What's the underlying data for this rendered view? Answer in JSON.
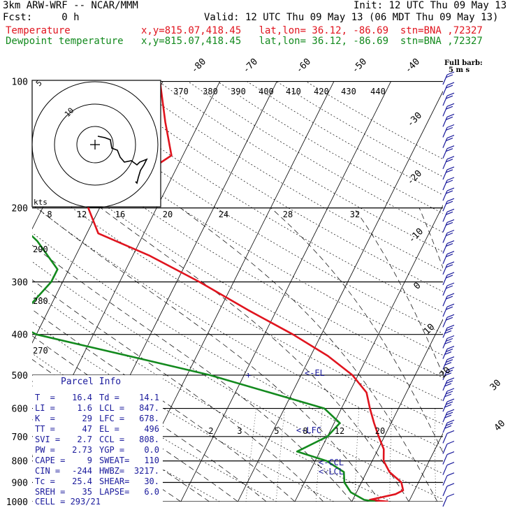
{
  "header": {
    "model": "3km ARW-WRF -- NCAR/MMM",
    "init": "Init: 12 UTC Thu 09 May 13",
    "fcst": "Fcst:     0 h",
    "valid": "Valid: 12 UTC Thu 09 May 13 (06 MDT Thu 09 May 13)",
    "temp_label": "Temperature",
    "temp_info": "x,y=815.07,418.45   lat,lon= 36.12, -86.69  stn=BNA ,72327",
    "dew_label": "Dewpoint temperature",
    "dew_info": "x,y=815.07,418.45   lat,lon= 36.12, -86.69  stn=BNA ,72327"
  },
  "colors": {
    "temperature": "#e0141e",
    "dewpoint": "#138a1e",
    "text_blue": "#1a1a9c",
    "grid": "#000000"
  },
  "wind_barb_label": "Full barb:",
  "wind_barb_units": "5 m s",
  "hodograph": {
    "units": "kts",
    "rings": [
      "5",
      "10"
    ]
  },
  "parcel_info": {
    "title": "Parcel Info",
    "rows": [
      [
        "T  =",
        "16.4",
        "Td =",
        "14.1"
      ],
      [
        "LI =",
        "1.6",
        "LCL =",
        "847."
      ],
      [
        "K  =",
        "29",
        "LFC =",
        "678."
      ],
      [
        "TT =",
        "47",
        "EL =",
        "496"
      ],
      [
        "SVI =",
        "2.7",
        "CCL =",
        "808."
      ],
      [
        "PW =",
        "2.73",
        "YGP =",
        "0.0"
      ],
      [
        "CAPE =",
        "9",
        "SWEAT=",
        "110"
      ],
      [
        "CIN =",
        "-244",
        "HWBZ=",
        "3217."
      ],
      [
        "Tc =",
        "25.4",
        "SHEAR=",
        "30."
      ],
      [
        "SREH =",
        "35",
        "LAPSE=",
        "6.0"
      ]
    ],
    "cell": "CELL = 293/21"
  },
  "level_markers": [
    "<-EL",
    "<-LFC",
    "<-CCL",
    "<-LCL"
  ],
  "chart_data": {
    "type": "line",
    "title": "",
    "pressure_levels": [
      100,
      200,
      300,
      400,
      500,
      600,
      700,
      800,
      900,
      1000
    ],
    "pressure_ticks": [
      "100",
      "200",
      "300",
      "400",
      "500",
      "600",
      "700",
      "800",
      "900",
      "1000"
    ],
    "isotherm_labels": [
      "-80",
      "-70",
      "-60",
      "-50",
      "-40",
      "-30",
      "-20",
      "-10",
      "0",
      "10",
      "20",
      "30",
      "40"
    ],
    "dry_adiabat_labels": [
      "370",
      "380",
      "390",
      "400",
      "410",
      "420",
      "430",
      "440"
    ],
    "theta_left_labels": [
      "290",
      "280",
      "270"
    ],
    "mixing_ratio_labels": [
      "8",
      "12",
      "16",
      "20",
      "24",
      "28",
      "32"
    ],
    "mixing_ratio_low_labels": [
      "2",
      "3",
      "5",
      "8",
      "12",
      "20"
    ],
    "series": [
      {
        "name": "Temperature",
        "color": "#e0141e",
        "points": [
          [
            100,
            -60.5
          ],
          [
            125,
            -56
          ],
          [
            150,
            -52
          ],
          [
            175,
            -57
          ],
          [
            190,
            -61
          ],
          [
            200,
            -62
          ],
          [
            230,
            -58
          ],
          [
            260,
            -47
          ],
          [
            300,
            -36
          ],
          [
            350,
            -25
          ],
          [
            400,
            -15
          ],
          [
            450,
            -7
          ],
          [
            500,
            -1
          ],
          [
            550,
            3
          ],
          [
            600,
            5
          ],
          [
            650,
            7
          ],
          [
            700,
            9
          ],
          [
            750,
            11
          ],
          [
            800,
            12
          ],
          [
            850,
            14
          ],
          [
            900,
            17
          ],
          [
            940,
            18
          ],
          [
            960,
            17
          ],
          [
            975,
            15
          ],
          [
            990,
            13
          ],
          [
            1000,
            16.4
          ]
        ]
      },
      {
        "name": "Dewpoint temperature",
        "color": "#138a1e",
        "points": [
          [
            100,
            -85
          ],
          [
            150,
            -80
          ],
          [
            160,
            -79
          ],
          [
            175,
            -78
          ],
          [
            190,
            -79
          ],
          [
            200,
            -77
          ],
          [
            240,
            -68
          ],
          [
            280,
            -62
          ],
          [
            300,
            -62
          ],
          [
            350,
            -64
          ],
          [
            380,
            -64
          ],
          [
            400,
            -60
          ],
          [
            450,
            -42
          ],
          [
            500,
            -26
          ],
          [
            550,
            -14
          ],
          [
            600,
            -3
          ],
          [
            650,
            1
          ],
          [
            700,
            0
          ],
          [
            760,
            -4
          ],
          [
            800,
            2
          ],
          [
            850,
            6
          ],
          [
            900,
            7
          ],
          [
            950,
            9
          ],
          [
            990,
            12
          ],
          [
            1000,
            14.1
          ]
        ]
      }
    ],
    "wind_barbs": {
      "count": 41,
      "speed_knots_range": [
        10,
        40
      ]
    },
    "grid": true
  }
}
